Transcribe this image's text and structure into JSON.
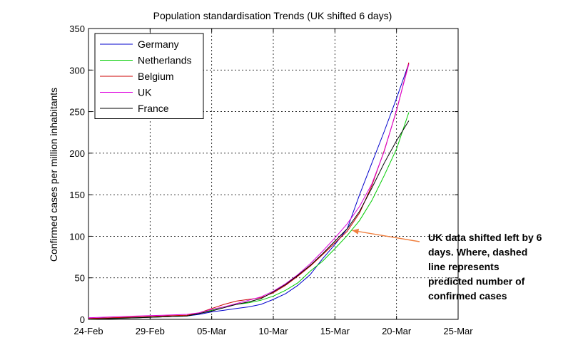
{
  "chart_data": {
    "type": "line",
    "title": "Population standardisation Trends (UK shifted 6 days)",
    "xlabel": "",
    "ylabel": "Confirmed cases per million inhabitants",
    "x_ticks": [
      "24-Feb",
      "29-Feb",
      "05-Mar",
      "10-Mar",
      "15-Mar",
      "20-Mar",
      "25-Mar"
    ],
    "xlim": [
      0,
      30
    ],
    "ylim": [
      0,
      350
    ],
    "y_ticks": [
      0,
      50,
      100,
      150,
      200,
      250,
      300,
      350
    ],
    "grid": true,
    "grid_style": "dashed",
    "legend_position": "top-left",
    "series": [
      {
        "name": "Germany",
        "color": "#0000cc",
        "x": [
          0,
          2,
          4,
          6,
          8,
          9,
          10,
          11,
          12,
          13,
          14,
          15,
          16,
          17,
          18,
          19,
          20,
          21,
          22,
          23,
          24,
          25,
          26
        ],
        "y": [
          1,
          2,
          2,
          3,
          4,
          6,
          9,
          11,
          13,
          15,
          18,
          24,
          31,
          41,
          54,
          73,
          90,
          109,
          150,
          188,
          226,
          266,
          308
        ]
      },
      {
        "name": "Netherlands",
        "color": "#00cc00",
        "x": [
          0,
          2,
          4,
          6,
          8,
          9,
          10,
          11,
          12,
          13,
          14,
          15,
          16,
          17,
          18,
          19,
          20,
          21,
          22,
          23,
          24,
          25,
          26
        ],
        "y": [
          0,
          1,
          2,
          3,
          4,
          7,
          11,
          15,
          18,
          20,
          23,
          28,
          35,
          44,
          58,
          70,
          85,
          101,
          119,
          143,
          173,
          205,
          249
        ]
      },
      {
        "name": "Belgium",
        "color": "#cc0000",
        "x": [
          0,
          2,
          4,
          6,
          8,
          9,
          10,
          11,
          12,
          13,
          14,
          15,
          16,
          17,
          18,
          19,
          20,
          21,
          22,
          23,
          24,
          25,
          26
        ],
        "y": [
          1,
          2,
          3,
          4,
          5,
          8,
          13,
          18,
          22,
          24,
          26,
          32,
          41,
          52,
          64,
          78,
          92,
          106,
          128,
          161,
          203,
          251,
          309
        ]
      },
      {
        "name": "UK",
        "color": "#dd00dd",
        "x": [
          0,
          2,
          4,
          6,
          8,
          9,
          10,
          11,
          12,
          13,
          14,
          15,
          16,
          17,
          18,
          19,
          20,
          21,
          22,
          23,
          24,
          25,
          26
        ],
        "y": [
          2,
          3,
          4,
          5,
          6,
          8,
          12,
          15,
          19,
          23,
          27,
          34,
          43,
          54,
          67,
          82,
          98,
          115,
          136,
          163,
          202,
          252,
          307
        ]
      },
      {
        "name": "France",
        "color": "#000000",
        "x": [
          0,
          2,
          4,
          6,
          8,
          9,
          10,
          11,
          12,
          13,
          14,
          15,
          16,
          17,
          18,
          19,
          20,
          21,
          22,
          23,
          24,
          25,
          26
        ],
        "y": [
          0,
          1,
          2,
          3,
          4,
          7,
          10,
          14,
          18,
          21,
          25,
          33,
          42,
          53,
          65,
          79,
          94,
          109,
          130,
          158,
          188,
          215,
          239
        ]
      }
    ],
    "annotation": {
      "lines": [
        "UK data shifted left by 6",
        "days. Where, dashed",
        "line represents",
        "predicted number of",
        "confirmed cases"
      ],
      "arrow_color": "#f08040",
      "points_to": {
        "x": 21.4,
        "y": 107
      }
    }
  }
}
